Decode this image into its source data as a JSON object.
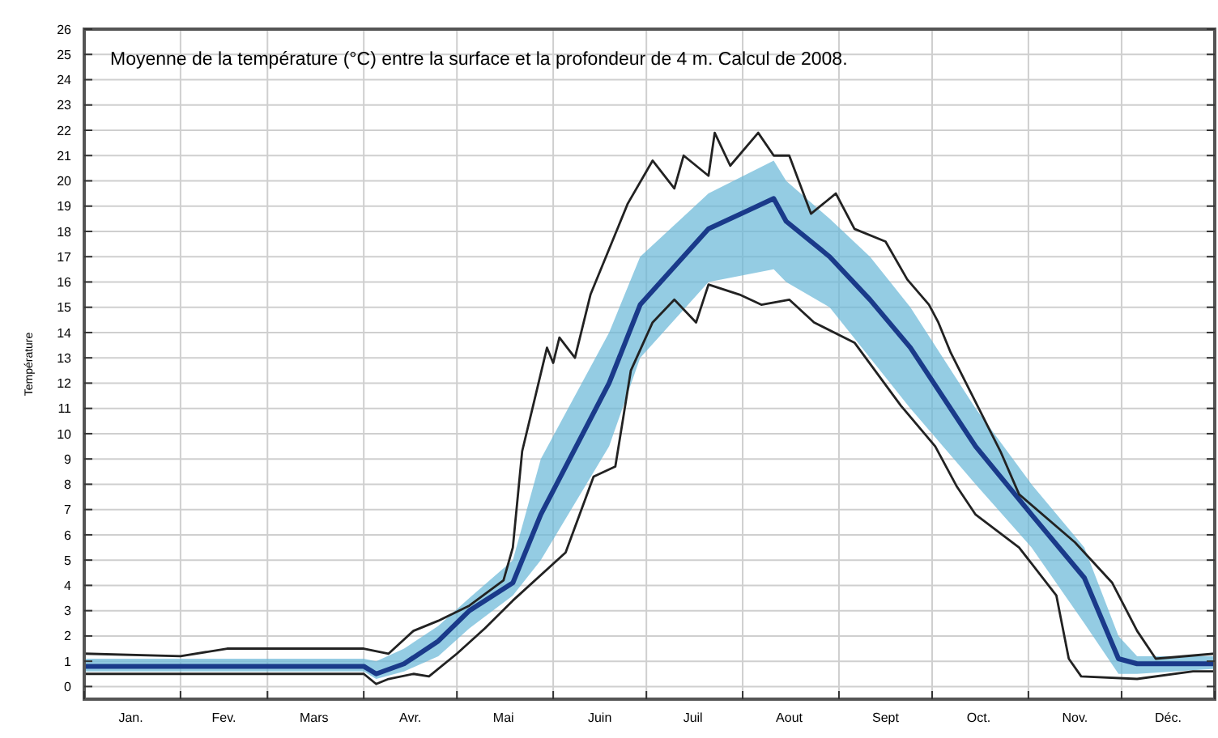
{
  "chart_data": {
    "type": "line",
    "title": "Moyenne de la température (°C) entre la surface et la profondeur de 4 m.  Calcul de 2008.",
    "ylabel": "Température",
    "xlim": [
      "--01-01",
      "--12-31"
    ],
    "xticks": [
      {
        "value": "--01-01",
        "label": null
      },
      {
        "value": "--01-16",
        "label": "Jan."
      },
      {
        "value": "--02-01",
        "label": null
      },
      {
        "value": "--02-15",
        "label": "Fev."
      },
      {
        "value": "--03-01",
        "label": null
      },
      {
        "value": "--03-16",
        "label": "Mars"
      },
      {
        "value": "--04-01",
        "label": null
      },
      {
        "value": "--04-16",
        "label": "Avr."
      },
      {
        "value": "--05-01",
        "label": null
      },
      {
        "value": "--05-16",
        "label": "Mai"
      },
      {
        "value": "--06-01",
        "label": null
      },
      {
        "value": "--06-16",
        "label": "Juin"
      },
      {
        "value": "--07-01",
        "label": null
      },
      {
        "value": "--07-16",
        "label": "Juil"
      },
      {
        "value": "--08-01",
        "label": null
      },
      {
        "value": "--08-16",
        "label": "Aout"
      },
      {
        "value": "--09-01",
        "label": null
      },
      {
        "value": "--09-16",
        "label": "Sept"
      },
      {
        "value": "--10-01",
        "label": null
      },
      {
        "value": "--10-16",
        "label": "Oct."
      },
      {
        "value": "--11-01",
        "label": null
      },
      {
        "value": "--11-16",
        "label": "Nov."
      },
      {
        "value": "--12-01",
        "label": null
      },
      {
        "value": "--12-16",
        "label": "Déc."
      },
      {
        "value": "--12-31",
        "label": null
      }
    ],
    "ylim": [
      -0.5,
      26
    ],
    "yticks": [
      0,
      1,
      2,
      3,
      4,
      5,
      6,
      7,
      8,
      9,
      10,
      11,
      12,
      13,
      14,
      15,
      16,
      17,
      18,
      19,
      20,
      21,
      22,
      23,
      24,
      25,
      26
    ],
    "grid": true,
    "marker": "none",
    "line_style": "solid",
    "series": [
      {
        "color": "#1a3a8a",
        "x": [
          "--01-01",
          "--04-01",
          "--04-05",
          "--04-14",
          "--04-25",
          "--05-05",
          "--05-19",
          "--05-28",
          "--06-19",
          "--06-29",
          "--07-21",
          "--08-11",
          "--08-15",
          "--08-29",
          "--09-11",
          "--09-24",
          "--10-15",
          "--11-02",
          "--11-19",
          "--11-30",
          "--12-06",
          "--12-31"
        ],
        "values": [
          0.8,
          0.8,
          0.5,
          0.9,
          1.8,
          3.0,
          4.1,
          6.8,
          12,
          15.1,
          18.1,
          19.3,
          18.4,
          17,
          15.3,
          13.4,
          9.5,
          6.8,
          4.3,
          1.1,
          0.9,
          0.9
        ],
        "lower": [
          0.6,
          0.6,
          0.3,
          0.6,
          1.2,
          2.3,
          3.6,
          5,
          9.5,
          13,
          16,
          16.5,
          16,
          15,
          13,
          11,
          8,
          5.5,
          2.5,
          0.5,
          0.5,
          0.7
        ],
        "upper": [
          1.1,
          1.1,
          1.0,
          1.5,
          2.4,
          3.5,
          5,
          9,
          14,
          17,
          19.5,
          20.8,
          20,
          18.5,
          17,
          15,
          11,
          8,
          5.5,
          2,
          1.2,
          1.2
        ]
      },
      {
        "color": "#222222",
        "x": [
          "--01-01",
          "--02-01",
          "--02-16",
          "--04-01",
          "--04-09",
          "--04-17",
          "--04-25",
          "--05-05",
          "--05-16",
          "--05-19",
          "--05-22",
          "--05-30",
          "--06-01",
          "--06-03",
          "--06-08",
          "--06-13",
          "--06-25",
          "--07-03",
          "--07-10",
          "--07-13",
          "--07-21",
          "--07-23",
          "--07-28",
          "--08-06",
          "--08-11",
          "--08-16",
          "--08-23",
          "--08-31",
          "--09-06",
          "--09-16",
          "--09-23",
          "--09-30",
          "--10-03",
          "--10-07",
          "--10-23",
          "--10-29",
          "--11-16",
          "--11-28",
          "--12-06",
          "--12-12",
          "--12-31"
        ],
        "values": [
          1.3,
          1.2,
          1.5,
          1.5,
          1.3,
          2.2,
          2.6,
          3.2,
          4.2,
          5.5,
          9.3,
          13.4,
          12.8,
          13.8,
          13.0,
          15.5,
          19.1,
          20.8,
          19.7,
          21.0,
          20.2,
          21.9,
          20.6,
          21.9,
          21.0,
          21.0,
          18.7,
          19.5,
          18.1,
          17.6,
          16.1,
          15.1,
          14.4,
          13.2,
          9.3,
          7.6,
          5.7,
          4.1,
          2.2,
          1.1,
          1.3
        ]
      },
      {
        "color": "#222222",
        "x": [
          "--01-01",
          "--04-01",
          "--04-05",
          "--04-09",
          "--04-17",
          "--04-22",
          "--05-01",
          "--05-10",
          "--05-19",
          "--06-05",
          "--06-14",
          "--06-21",
          "--06-26",
          "--07-03",
          "--07-10",
          "--07-17",
          "--07-21",
          "--07-31",
          "--08-07",
          "--08-16",
          "--08-24",
          "--09-06",
          "--09-21",
          "--10-02",
          "--10-09",
          "--10-15",
          "--10-29",
          "--11-10",
          "--11-14",
          "--11-18",
          "--12-06",
          "--12-24",
          "--12-31"
        ],
        "values": [
          0.5,
          0.5,
          0.1,
          0.3,
          0.5,
          0.4,
          1.3,
          2.3,
          3.4,
          5.3,
          8.3,
          8.7,
          12.5,
          14.4,
          15.3,
          14.4,
          15.9,
          15.5,
          15.1,
          15.3,
          14.4,
          13.6,
          11.1,
          9.5,
          7.9,
          6.8,
          5.5,
          3.6,
          1.1,
          0.4,
          0.3,
          0.6,
          0.6
        ]
      }
    ]
  }
}
